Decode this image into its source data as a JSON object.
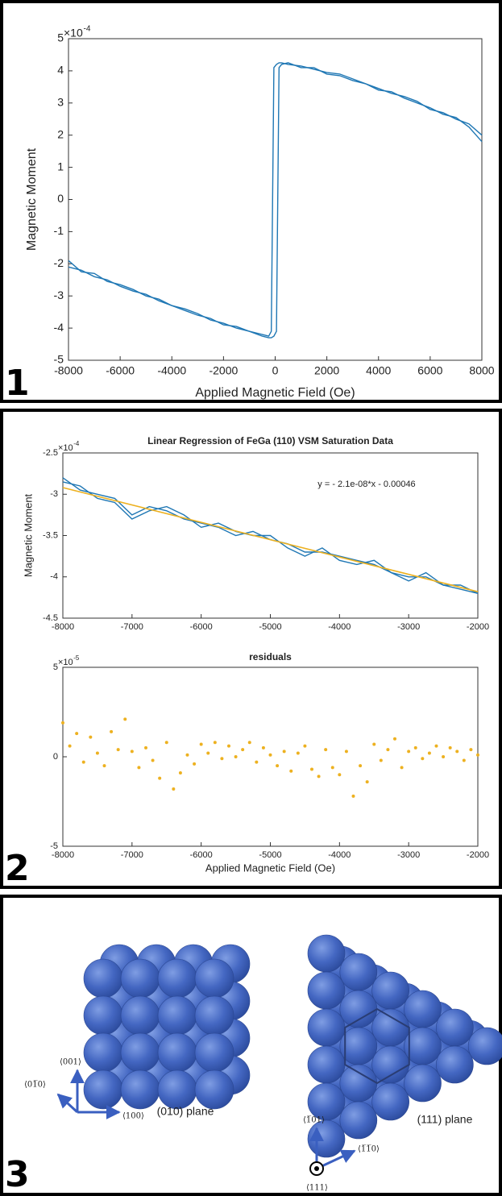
{
  "chart_data": [
    {
      "type": "line",
      "x_label": "Applied Magnetic Field (Oe)",
      "y_label": "Magnetic Moment",
      "y_multiplier": "×10",
      "y_multiplier_exp": "-4",
      "xlim": [
        -8000,
        8000
      ],
      "ylim": [
        -5,
        5
      ],
      "xticks": [
        -8000,
        -6000,
        -4000,
        -2000,
        0,
        2000,
        4000,
        6000,
        8000
      ],
      "yticks": [
        -5,
        -4,
        -3,
        -2,
        -1,
        0,
        1,
        2,
        3,
        4,
        5
      ],
      "x": [
        -8000,
        -7500,
        -7000,
        -6500,
        -6000,
        -5500,
        -5000,
        -4500,
        -4000,
        -3500,
        -3000,
        -2500,
        -2000,
        -1500,
        -1000,
        -500,
        -250,
        -150,
        -50,
        50,
        150,
        250,
        500,
        1000,
        1500,
        2000,
        2500,
        3000,
        3500,
        4000,
        4500,
        5000,
        5500,
        6000,
        6500,
        7000,
        7500,
        8000
      ],
      "series": [
        {
          "color": "#1f77b4",
          "values": [
            -1.9,
            -2.25,
            -2.3,
            -2.55,
            -2.65,
            -2.8,
            -3.0,
            -3.1,
            -3.3,
            -3.4,
            -3.55,
            -3.75,
            -3.85,
            -4.0,
            -4.1,
            -4.2,
            -4.25,
            -4.1,
            4.1,
            4.2,
            4.25,
            4.25,
            4.2,
            4.15,
            4.05,
            3.95,
            3.9,
            3.75,
            3.6,
            3.45,
            3.3,
            3.2,
            3.05,
            2.8,
            2.7,
            2.5,
            2.35,
            2.0
          ]
        },
        {
          "color": "#1f77b4",
          "values": [
            -2.1,
            -2.2,
            -2.4,
            -2.5,
            -2.7,
            -2.85,
            -2.95,
            -3.15,
            -3.3,
            -3.45,
            -3.6,
            -3.7,
            -3.9,
            -3.95,
            -4.1,
            -4.25,
            -4.3,
            -4.3,
            -4.25,
            -4.1,
            4.1,
            4.2,
            4.25,
            4.1,
            4.1,
            3.9,
            3.85,
            3.7,
            3.6,
            3.4,
            3.35,
            3.15,
            3.0,
            2.85,
            2.65,
            2.55,
            2.25,
            1.8
          ]
        }
      ]
    },
    {
      "type": "line",
      "title": "Linear Regression of FeGa (110) VSM Saturation Data",
      "y_label": "Magnetic Moment",
      "y_multiplier": "×10",
      "y_multiplier_exp": "-4",
      "annotation": "y = - 2.1e-08*x - 0.00046",
      "xlim": [
        -8000,
        -2000
      ],
      "ylim": [
        -4.5,
        -2.5
      ],
      "xticks": [
        -8000,
        -7000,
        -6000,
        -5000,
        -4000,
        -3000,
        -2000
      ],
      "yticks": [
        -4.5,
        -4,
        -3.5,
        -3,
        -2.5
      ],
      "x": [
        -8000,
        -7750,
        -7500,
        -7250,
        -7000,
        -6750,
        -6500,
        -6250,
        -6000,
        -5750,
        -5500,
        -5250,
        -5000,
        -4750,
        -4500,
        -4250,
        -4000,
        -3750,
        -3500,
        -3250,
        -3000,
        -2750,
        -2500,
        -2250,
        -2000
      ],
      "series": [
        {
          "color": "#1f77b4",
          "values": [
            -2.8,
            -2.95,
            -3.0,
            -3.05,
            -3.25,
            -3.15,
            -3.2,
            -3.3,
            -3.35,
            -3.4,
            -3.5,
            -3.45,
            -3.55,
            -3.6,
            -3.7,
            -3.7,
            -3.75,
            -3.8,
            -3.85,
            -3.95,
            -4.0,
            -4.0,
            -4.1,
            -4.1,
            -4.2
          ]
        },
        {
          "color": "#1f77b4",
          "values": [
            -2.85,
            -2.9,
            -3.05,
            -3.1,
            -3.3,
            -3.2,
            -3.15,
            -3.25,
            -3.4,
            -3.35,
            -3.45,
            -3.5,
            -3.5,
            -3.65,
            -3.75,
            -3.65,
            -3.8,
            -3.85,
            -3.8,
            -3.95,
            -4.05,
            -3.95,
            -4.1,
            -4.15,
            -4.2
          ]
        },
        {
          "color": "#edb120",
          "x": [
            -8000,
            -2000
          ],
          "values": [
            -2.92,
            -4.18
          ]
        }
      ]
    },
    {
      "type": "scatter",
      "title": "residuals",
      "x_label": "Applied Magnetic Field (Oe)",
      "y_multiplier": "×10",
      "y_multiplier_exp": "-5",
      "xlim": [
        -8000,
        -2000
      ],
      "ylim": [
        -5,
        5
      ],
      "xticks": [
        -8000,
        -7000,
        -6000,
        -5000,
        -4000,
        -3000,
        -2000
      ],
      "yticks": [
        -5,
        0,
        5
      ],
      "x": [
        -8000,
        -7900,
        -7800,
        -7700,
        -7600,
        -7500,
        -7400,
        -7300,
        -7200,
        -7100,
        -7000,
        -6900,
        -6800,
        -6700,
        -6600,
        -6500,
        -6400,
        -6300,
        -6200,
        -6100,
        -6000,
        -5900,
        -5800,
        -5700,
        -5600,
        -5500,
        -5400,
        -5300,
        -5200,
        -5100,
        -5000,
        -4900,
        -4800,
        -4700,
        -4600,
        -4500,
        -4400,
        -4300,
        -4200,
        -4100,
        -4000,
        -3900,
        -3800,
        -3700,
        -3600,
        -3500,
        -3400,
        -3300,
        -3200,
        -3100,
        -3000,
        -2900,
        -2800,
        -2700,
        -2600,
        -2500,
        -2400,
        -2300,
        -2200,
        -2100,
        -2000
      ],
      "series": [
        {
          "color": "#edb120",
          "values": [
            1.9,
            0.6,
            1.3,
            -0.3,
            1.1,
            0.2,
            -0.5,
            1.4,
            0.4,
            2.1,
            0.3,
            -0.6,
            0.5,
            -0.2,
            -1.2,
            0.8,
            -1.8,
            -0.9,
            0.1,
            -0.4,
            0.7,
            0.2,
            0.8,
            -0.1,
            0.6,
            0.0,
            0.4,
            0.8,
            -0.3,
            0.5,
            0.1,
            -0.5,
            0.3,
            -0.8,
            0.2,
            0.6,
            -0.7,
            -1.1,
            0.4,
            -0.6,
            -1.0,
            0.3,
            -2.2,
            -0.5,
            -1.4,
            0.7,
            -0.2,
            0.4,
            1.0,
            -0.6,
            0.3,
            0.5,
            -0.1,
            0.2,
            0.6,
            0.0,
            0.5,
            0.3,
            -0.2,
            0.4,
            0.1
          ]
        }
      ]
    }
  ],
  "panel_labels": [
    "1",
    "2",
    "3"
  ],
  "diagram": {
    "left_plane": "(010) plane",
    "right_plane": "(111) plane",
    "left_axes": [
      "⟨001⟩",
      "⟨01̅0⟩",
      "⟨100⟩"
    ],
    "right_axes": [
      "⟨1̅01⟩",
      "⟨1̅1̅0⟩",
      "⟨111⟩"
    ]
  }
}
